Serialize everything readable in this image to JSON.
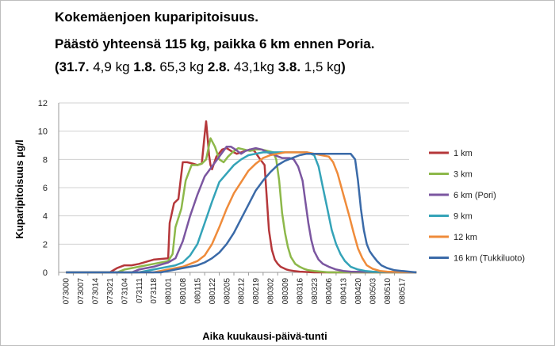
{
  "title_line1": "Kokemäenjoen kuparipitoisuus.",
  "title_line2": "Päästö yhteensä 115 kg, paikka 6 km ennen Poria.",
  "title_line3": {
    "open": "(",
    "d1": "31.7.",
    "v1": " 4,9 kg  ",
    "d2": "1.8.",
    "v2": " 65,3 kg  ",
    "d3": "2.8.",
    "v3": " 43,1kg  ",
    "d4": "3.8.",
    "v4": " 1,5 kg",
    "close": ")"
  },
  "chart_data": {
    "type": "line",
    "ylabel": "Kuparipitoisuus µg/l",
    "xlabel": "Aika kuukausi-päivä-tunti",
    "ylim": [
      0,
      12
    ],
    "yticks": [
      0,
      2,
      4,
      6,
      8,
      10,
      12
    ],
    "grid": "horizontal",
    "legend_position": "right",
    "xticks": [
      "073000",
      "073007",
      "073014",
      "073021",
      "073104",
      "073111",
      "073118",
      "080101",
      "080108",
      "080115",
      "080122",
      "080205",
      "080212",
      "080219",
      "080302",
      "080309",
      "080316",
      "080323",
      "080406",
      "080413",
      "080420",
      "080503",
      "080510",
      "080517"
    ],
    "series": [
      {
        "name": "1 km",
        "color": "#b5373a",
        "x": [
          0,
          3,
          3.5,
          4,
          4.5,
          5,
          6,
          7,
          7.1,
          7.4,
          7.7,
          8,
          8.3,
          8.7,
          9,
          9.3,
          9.5,
          9.6,
          9.7,
          9.8,
          9.9,
          10,
          10.3,
          10.7,
          11,
          11.3,
          11.7,
          12,
          12.3,
          12.6,
          12.9,
          13.1,
          13.3,
          13.6,
          13.9,
          14.1,
          14.3,
          14.5,
          14.7,
          14.9,
          15.1,
          15.3,
          15.6,
          16,
          17,
          18,
          24
        ],
        "y": [
          0,
          0,
          0.3,
          0.5,
          0.5,
          0.6,
          0.9,
          1.0,
          3.5,
          4.9,
          5.2,
          7.8,
          7.8,
          7.7,
          7.6,
          7.7,
          9.8,
          10.7,
          9.5,
          8.3,
          7.6,
          7.3,
          8.2,
          8.7,
          8.8,
          8.6,
          8.4,
          8.5,
          8.6,
          8.7,
          8.6,
          8.3,
          8.0,
          7.6,
          3.0,
          1.6,
          0.9,
          0.6,
          0.4,
          0.3,
          0.2,
          0.15,
          0.1,
          0.05,
          0,
          0,
          0
        ]
      },
      {
        "name": "3 km",
        "color": "#8db84a",
        "x": [
          0,
          3.5,
          4,
          4.5,
          5,
          6,
          7,
          7.3,
          7.5,
          7.9,
          8.2,
          8.6,
          9,
          9.3,
          9.6,
          9.9,
          10.2,
          10.5,
          10.8,
          11.1,
          11.4,
          11.8,
          12.2,
          12.6,
          13,
          13.4,
          13.8,
          14.2,
          14.4,
          14.6,
          14.8,
          15,
          15.2,
          15.4,
          15.7,
          16,
          16.3,
          16.6,
          17,
          18,
          24
        ],
        "y": [
          0,
          0,
          0.2,
          0.3,
          0.4,
          0.6,
          0.8,
          1.3,
          3.2,
          4.5,
          6.5,
          7.6,
          7.6,
          7.7,
          8.0,
          9.5,
          8.9,
          8.0,
          7.8,
          8.2,
          8.5,
          8.8,
          8.7,
          8.6,
          8.7,
          8.7,
          8.6,
          8.5,
          8.0,
          6.5,
          4.2,
          2.8,
          1.8,
          1.1,
          0.6,
          0.4,
          0.25,
          0.15,
          0.1,
          0,
          0
        ]
      },
      {
        "name": "6 km (Pori)",
        "color": "#7b56a0",
        "x": [
          0,
          4.5,
          5,
          6,
          7,
          7.5,
          8,
          8.5,
          9,
          9.5,
          10,
          10.5,
          11,
          11.3,
          11.6,
          12,
          12.3,
          12.6,
          13,
          13.4,
          13.8,
          14.3,
          14.8,
          15.3,
          15.6,
          15.9,
          16.2,
          16.4,
          16.6,
          16.8,
          17,
          17.3,
          17.6,
          18,
          18.5,
          19,
          19.5,
          24
        ],
        "y": [
          0,
          0,
          0.2,
          0.4,
          0.7,
          1.0,
          2.2,
          4.0,
          5.5,
          6.8,
          7.5,
          8.2,
          8.9,
          8.9,
          8.7,
          8.4,
          8.6,
          8.7,
          8.8,
          8.7,
          8.5,
          8.3,
          8.1,
          8.1,
          8.0,
          7.5,
          6.5,
          5.0,
          3.5,
          2.3,
          1.5,
          0.9,
          0.6,
          0.4,
          0.2,
          0.1,
          0.05,
          0
        ]
      },
      {
        "name": "9 km",
        "color": "#34a3b8",
        "x": [
          0,
          5,
          6,
          7,
          7.5,
          8,
          8.5,
          9,
          9.5,
          10,
          10.5,
          11,
          11.5,
          12,
          12.5,
          13,
          13.5,
          14,
          14.5,
          15,
          15.5,
          16,
          16.5,
          17,
          17.3,
          17.6,
          17.9,
          18.2,
          18.5,
          18.8,
          19.1,
          19.5,
          20,
          20.5,
          21,
          24
        ],
        "y": [
          0,
          0,
          0.2,
          0.4,
          0.5,
          0.7,
          1.2,
          2.0,
          3.5,
          5.0,
          6.4,
          7.0,
          7.6,
          8.0,
          8.3,
          8.4,
          8.5,
          8.5,
          8.5,
          8.5,
          8.5,
          8.5,
          8.5,
          8.3,
          7.5,
          6.0,
          4.5,
          3.0,
          2.0,
          1.3,
          0.8,
          0.4,
          0.2,
          0.1,
          0.05,
          0
        ]
      },
      {
        "name": "12 km",
        "color": "#ef8b3a",
        "x": [
          0,
          6,
          7,
          8,
          8.5,
          9,
          9.5,
          10,
          10.5,
          11,
          11.5,
          12,
          12.5,
          13,
          13.5,
          14,
          14.5,
          15,
          15.5,
          16,
          16.5,
          17,
          17.5,
          18,
          18.3,
          18.6,
          19,
          19.4,
          19.7,
          20,
          20.3,
          20.6,
          21,
          21.5,
          22,
          24
        ],
        "y": [
          0,
          0,
          0.2,
          0.4,
          0.6,
          0.8,
          1.2,
          2.0,
          3.2,
          4.5,
          5.6,
          6.4,
          7.2,
          7.7,
          8.1,
          8.3,
          8.4,
          8.5,
          8.5,
          8.5,
          8.5,
          8.4,
          8.3,
          8.2,
          7.8,
          7.0,
          5.5,
          4.0,
          2.8,
          1.7,
          1.0,
          0.5,
          0.25,
          0.1,
          0.05,
          0
        ]
      },
      {
        "name": "16 km (Tukkiluoto)",
        "color": "#3a6aa8",
        "x": [
          0,
          6.5,
          7,
          8,
          9,
          9.5,
          10,
          10.5,
          11,
          11.5,
          12,
          12.5,
          13,
          13.5,
          14,
          14.5,
          15,
          15.5,
          16,
          16.5,
          17,
          17.5,
          18,
          18.5,
          19,
          19.5,
          19.8,
          20,
          20.2,
          20.4,
          20.6,
          20.8,
          21,
          21.3,
          21.6,
          22,
          22.5,
          23,
          23.5,
          24
        ],
        "y": [
          0,
          0,
          0.1,
          0.3,
          0.5,
          0.7,
          1.0,
          1.4,
          2.0,
          2.8,
          3.8,
          4.8,
          5.8,
          6.5,
          7.1,
          7.6,
          7.9,
          8.1,
          8.3,
          8.4,
          8.4,
          8.4,
          8.4,
          8.4,
          8.4,
          8.4,
          8.0,
          6.5,
          4.5,
          3.0,
          2.0,
          1.5,
          1.2,
          0.8,
          0.5,
          0.3,
          0.15,
          0.1,
          0.05,
          0
        ]
      }
    ]
  }
}
